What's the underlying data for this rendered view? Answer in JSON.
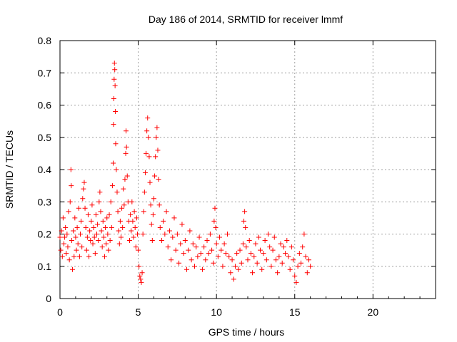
{
  "chart_data": {
    "type": "scatter",
    "title": "Day 186 of 2014, SRMTID for receiver lmmf",
    "xlabel": "GPS time / hours",
    "ylabel": "SRMTID / TECUs",
    "xlim": [
      0,
      24
    ],
    "ylim": [
      0,
      0.8
    ],
    "xticks": [
      0,
      5,
      10,
      15,
      20
    ],
    "yticks": [
      0,
      0.1,
      0.2,
      0.3,
      0.4,
      0.5,
      0.6,
      0.7,
      0.8
    ],
    "xtick_labels": [
      "0",
      "5",
      "10",
      "15",
      "20"
    ],
    "ytick_labels": [
      "0",
      "0.1",
      "0.2",
      "0.3",
      "0.4",
      "0.5",
      "0.6",
      "0.7",
      "0.8"
    ],
    "grid": true,
    "marker": "+",
    "marker_color": "#ff0000",
    "series": [
      {
        "name": "SRMTID",
        "points": [
          [
            0.0,
            0.19
          ],
          [
            0.05,
            0.15
          ],
          [
            0.1,
            0.21
          ],
          [
            0.15,
            0.13
          ],
          [
            0.2,
            0.25
          ],
          [
            0.25,
            0.17
          ],
          [
            0.3,
            0.19
          ],
          [
            0.35,
            0.22
          ],
          [
            0.4,
            0.14
          ],
          [
            0.45,
            0.2
          ],
          [
            0.5,
            0.16
          ],
          [
            0.55,
            0.27
          ],
          [
            0.6,
            0.12
          ],
          [
            0.65,
            0.3
          ],
          [
            0.7,
            0.4
          ],
          [
            0.72,
            0.35
          ],
          [
            0.75,
            0.18
          ],
          [
            0.8,
            0.09
          ],
          [
            0.85,
            0.21
          ],
          [
            0.9,
            0.13
          ],
          [
            0.95,
            0.25
          ],
          [
            1.0,
            0.19
          ],
          [
            1.05,
            0.15
          ],
          [
            1.1,
            0.22
          ],
          [
            1.15,
            0.17
          ],
          [
            1.2,
            0.28
          ],
          [
            1.25,
            0.13
          ],
          [
            1.3,
            0.2
          ],
          [
            1.35,
            0.24
          ],
          [
            1.4,
            0.16
          ],
          [
            1.45,
            0.31
          ],
          [
            1.5,
            0.34
          ],
          [
            1.55,
            0.36
          ],
          [
            1.6,
            0.28
          ],
          [
            1.65,
            0.22
          ],
          [
            1.7,
            0.15
          ],
          [
            1.75,
            0.19
          ],
          [
            1.8,
            0.26
          ],
          [
            1.85,
            0.13
          ],
          [
            1.9,
            0.21
          ],
          [
            1.95,
            0.18
          ],
          [
            2.0,
            0.24
          ],
          [
            2.05,
            0.29
          ],
          [
            2.1,
            0.17
          ],
          [
            2.15,
            0.22
          ],
          [
            2.2,
            0.19
          ],
          [
            2.25,
            0.14
          ],
          [
            2.3,
            0.26
          ],
          [
            2.35,
            0.2
          ],
          [
            2.4,
            0.23
          ],
          [
            2.45,
            0.18
          ],
          [
            2.5,
            0.3
          ],
          [
            2.55,
            0.33
          ],
          [
            2.6,
            0.27
          ],
          [
            2.65,
            0.21
          ],
          [
            2.7,
            0.16
          ],
          [
            2.75,
            0.24
          ],
          [
            2.8,
            0.19
          ],
          [
            2.85,
            0.13
          ],
          [
            2.9,
            0.22
          ],
          [
            2.95,
            0.17
          ],
          [
            3.0,
            0.25
          ],
          [
            3.05,
            0.2
          ],
          [
            3.1,
            0.15
          ],
          [
            3.15,
            0.26
          ],
          [
            3.2,
            0.18
          ],
          [
            3.25,
            0.3
          ],
          [
            3.3,
            0.22
          ],
          [
            3.35,
            0.35
          ],
          [
            3.4,
            0.42
          ],
          [
            3.42,
            0.54
          ],
          [
            3.44,
            0.62
          ],
          [
            3.46,
            0.68
          ],
          [
            3.48,
            0.73
          ],
          [
            3.5,
            0.71
          ],
          [
            3.52,
            0.66
          ],
          [
            3.54,
            0.58
          ],
          [
            3.56,
            0.48
          ],
          [
            3.6,
            0.4
          ],
          [
            3.65,
            0.33
          ],
          [
            3.7,
            0.27
          ],
          [
            3.75,
            0.21
          ],
          [
            3.8,
            0.17
          ],
          [
            3.85,
            0.24
          ],
          [
            3.9,
            0.19
          ],
          [
            3.95,
            0.28
          ],
          [
            4.0,
            0.22
          ],
          [
            4.05,
            0.34
          ],
          [
            4.1,
            0.29
          ],
          [
            4.15,
            0.37
          ],
          [
            4.2,
            0.45
          ],
          [
            4.22,
            0.52
          ],
          [
            4.25,
            0.47
          ],
          [
            4.3,
            0.38
          ],
          [
            4.35,
            0.3
          ],
          [
            4.4,
            0.24
          ],
          [
            4.45,
            0.18
          ],
          [
            4.5,
            0.26
          ],
          [
            4.55,
            0.21
          ],
          [
            4.6,
            0.3
          ],
          [
            4.65,
            0.24
          ],
          [
            4.7,
            0.19
          ],
          [
            4.75,
            0.27
          ],
          [
            4.8,
            0.22
          ],
          [
            4.85,
            0.16
          ],
          [
            4.9,
            0.25
          ],
          [
            4.95,
            0.2
          ],
          [
            5.0,
            0.15
          ],
          [
            5.05,
            0.1
          ],
          [
            5.1,
            0.07
          ],
          [
            5.15,
            0.06
          ],
          [
            5.2,
            0.05
          ],
          [
            5.25,
            0.08
          ],
          [
            5.3,
            0.2
          ],
          [
            5.35,
            0.27
          ],
          [
            5.4,
            0.33
          ],
          [
            5.45,
            0.39
          ],
          [
            5.5,
            0.45
          ],
          [
            5.55,
            0.52
          ],
          [
            5.6,
            0.56
          ],
          [
            5.65,
            0.5
          ],
          [
            5.7,
            0.44
          ],
          [
            5.75,
            0.36
          ],
          [
            5.8,
            0.29
          ],
          [
            5.85,
            0.23
          ],
          [
            5.9,
            0.18
          ],
          [
            5.95,
            0.26
          ],
          [
            6.0,
            0.31
          ],
          [
            6.05,
            0.38
          ],
          [
            6.1,
            0.44
          ],
          [
            6.15,
            0.5
          ],
          [
            6.2,
            0.53
          ],
          [
            6.25,
            0.46
          ],
          [
            6.3,
            0.37
          ],
          [
            6.35,
            0.29
          ],
          [
            6.4,
            0.22
          ],
          [
            6.5,
            0.18
          ],
          [
            6.6,
            0.24
          ],
          [
            6.7,
            0.2
          ],
          [
            6.8,
            0.27
          ],
          [
            6.9,
            0.16
          ],
          [
            7.0,
            0.21
          ],
          [
            7.1,
            0.12
          ],
          [
            7.2,
            0.19
          ],
          [
            7.3,
            0.25
          ],
          [
            7.4,
            0.15
          ],
          [
            7.5,
            0.2
          ],
          [
            7.6,
            0.11
          ],
          [
            7.7,
            0.17
          ],
          [
            7.8,
            0.23
          ],
          [
            7.9,
            0.14
          ],
          [
            8.0,
            0.18
          ],
          [
            8.1,
            0.09
          ],
          [
            8.2,
            0.15
          ],
          [
            8.3,
            0.21
          ],
          [
            8.4,
            0.12
          ],
          [
            8.5,
            0.17
          ],
          [
            8.6,
            0.1
          ],
          [
            8.7,
            0.16
          ],
          [
            8.8,
            0.13
          ],
          [
            8.9,
            0.19
          ],
          [
            9.0,
            0.14
          ],
          [
            9.1,
            0.09
          ],
          [
            9.2,
            0.16
          ],
          [
            9.3,
            0.12
          ],
          [
            9.4,
            0.18
          ],
          [
            9.5,
            0.14
          ],
          [
            9.6,
            0.2
          ],
          [
            9.7,
            0.15
          ],
          [
            9.8,
            0.11
          ],
          [
            9.85,
            0.24
          ],
          [
            9.9,
            0.28
          ],
          [
            9.95,
            0.22
          ],
          [
            10.0,
            0.17
          ],
          [
            10.1,
            0.13
          ],
          [
            10.2,
            0.19
          ],
          [
            10.3,
            0.15
          ],
          [
            10.4,
            0.1
          ],
          [
            10.5,
            0.17
          ],
          [
            10.6,
            0.14
          ],
          [
            10.7,
            0.2
          ],
          [
            10.8,
            0.13
          ],
          [
            10.9,
            0.08
          ],
          [
            11.0,
            0.12
          ],
          [
            11.1,
            0.06
          ],
          [
            11.2,
            0.1
          ],
          [
            11.3,
            0.14
          ],
          [
            11.4,
            0.09
          ],
          [
            11.5,
            0.15
          ],
          [
            11.6,
            0.11
          ],
          [
            11.7,
            0.17
          ],
          [
            11.75,
            0.24
          ],
          [
            11.8,
            0.27
          ],
          [
            11.85,
            0.22
          ],
          [
            11.9,
            0.16
          ],
          [
            12.0,
            0.12
          ],
          [
            12.1,
            0.18
          ],
          [
            12.2,
            0.14
          ],
          [
            12.3,
            0.08
          ],
          [
            12.4,
            0.13
          ],
          [
            12.5,
            0.17
          ],
          [
            12.6,
            0.11
          ],
          [
            12.7,
            0.19
          ],
          [
            12.8,
            0.15
          ],
          [
            12.9,
            0.09
          ],
          [
            13.0,
            0.14
          ],
          [
            13.1,
            0.18
          ],
          [
            13.2,
            0.12
          ],
          [
            13.3,
            0.2
          ],
          [
            13.4,
            0.16
          ],
          [
            13.5,
            0.1
          ],
          [
            13.6,
            0.15
          ],
          [
            13.7,
            0.19
          ],
          [
            13.8,
            0.12
          ],
          [
            13.9,
            0.08
          ],
          [
            14.0,
            0.13
          ],
          [
            14.1,
            0.17
          ],
          [
            14.2,
            0.11
          ],
          [
            14.3,
            0.16
          ],
          [
            14.4,
            0.14
          ],
          [
            14.5,
            0.18
          ],
          [
            14.6,
            0.13
          ],
          [
            14.7,
            0.09
          ],
          [
            14.8,
            0.16
          ],
          [
            14.9,
            0.12
          ],
          [
            15.0,
            0.07
          ],
          [
            15.1,
            0.05
          ],
          [
            15.2,
            0.1
          ],
          [
            15.3,
            0.14
          ],
          [
            15.4,
            0.11
          ],
          [
            15.5,
            0.16
          ],
          [
            15.6,
            0.2
          ],
          [
            15.7,
            0.13
          ],
          [
            15.8,
            0.08
          ],
          [
            15.9,
            0.12
          ],
          [
            16.0,
            0.1
          ]
        ]
      }
    ]
  }
}
